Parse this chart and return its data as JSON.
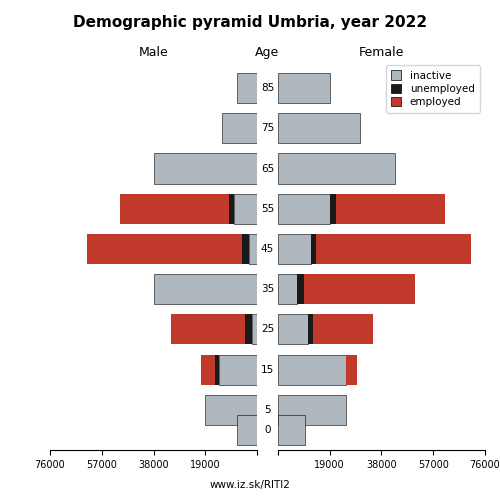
{
  "title": "Demographic pyramid Umbria, year 2022",
  "subtitle_left": "Male",
  "subtitle_center": "Age",
  "subtitle_right": "Female",
  "age_positions": [
    85,
    75,
    65,
    55,
    45,
    35,
    25,
    15,
    5,
    0
  ],
  "male": {
    "employed": [
      0,
      0,
      0,
      40000,
      57000,
      0,
      27000,
      5000,
      0,
      0
    ],
    "unemployed": [
      0,
      0,
      0,
      2000,
      2500,
      0,
      2500,
      1500,
      0,
      0
    ],
    "inactive": [
      7500,
      13000,
      38000,
      8500,
      3000,
      38000,
      2000,
      14000,
      19000,
      7500
    ]
  },
  "female": {
    "inactive": [
      19000,
      30000,
      43000,
      19000,
      12000,
      7000,
      11000,
      25000,
      25000,
      10000
    ],
    "unemployed": [
      0,
      0,
      0,
      2500,
      2000,
      2500,
      2000,
      0,
      0,
      0
    ],
    "employed": [
      0,
      0,
      0,
      40000,
      57000,
      41000,
      22000,
      4000,
      0,
      0
    ]
  },
  "colors": {
    "inactive": "#b0b8bf",
    "unemployed": "#1a1a1a",
    "employed": "#c0392b"
  },
  "xlim": 76000,
  "footer": "www.iz.sk/RITI2",
  "bar_height": 7.5,
  "background_color": "#ffffff",
  "spine_color": "#333333"
}
